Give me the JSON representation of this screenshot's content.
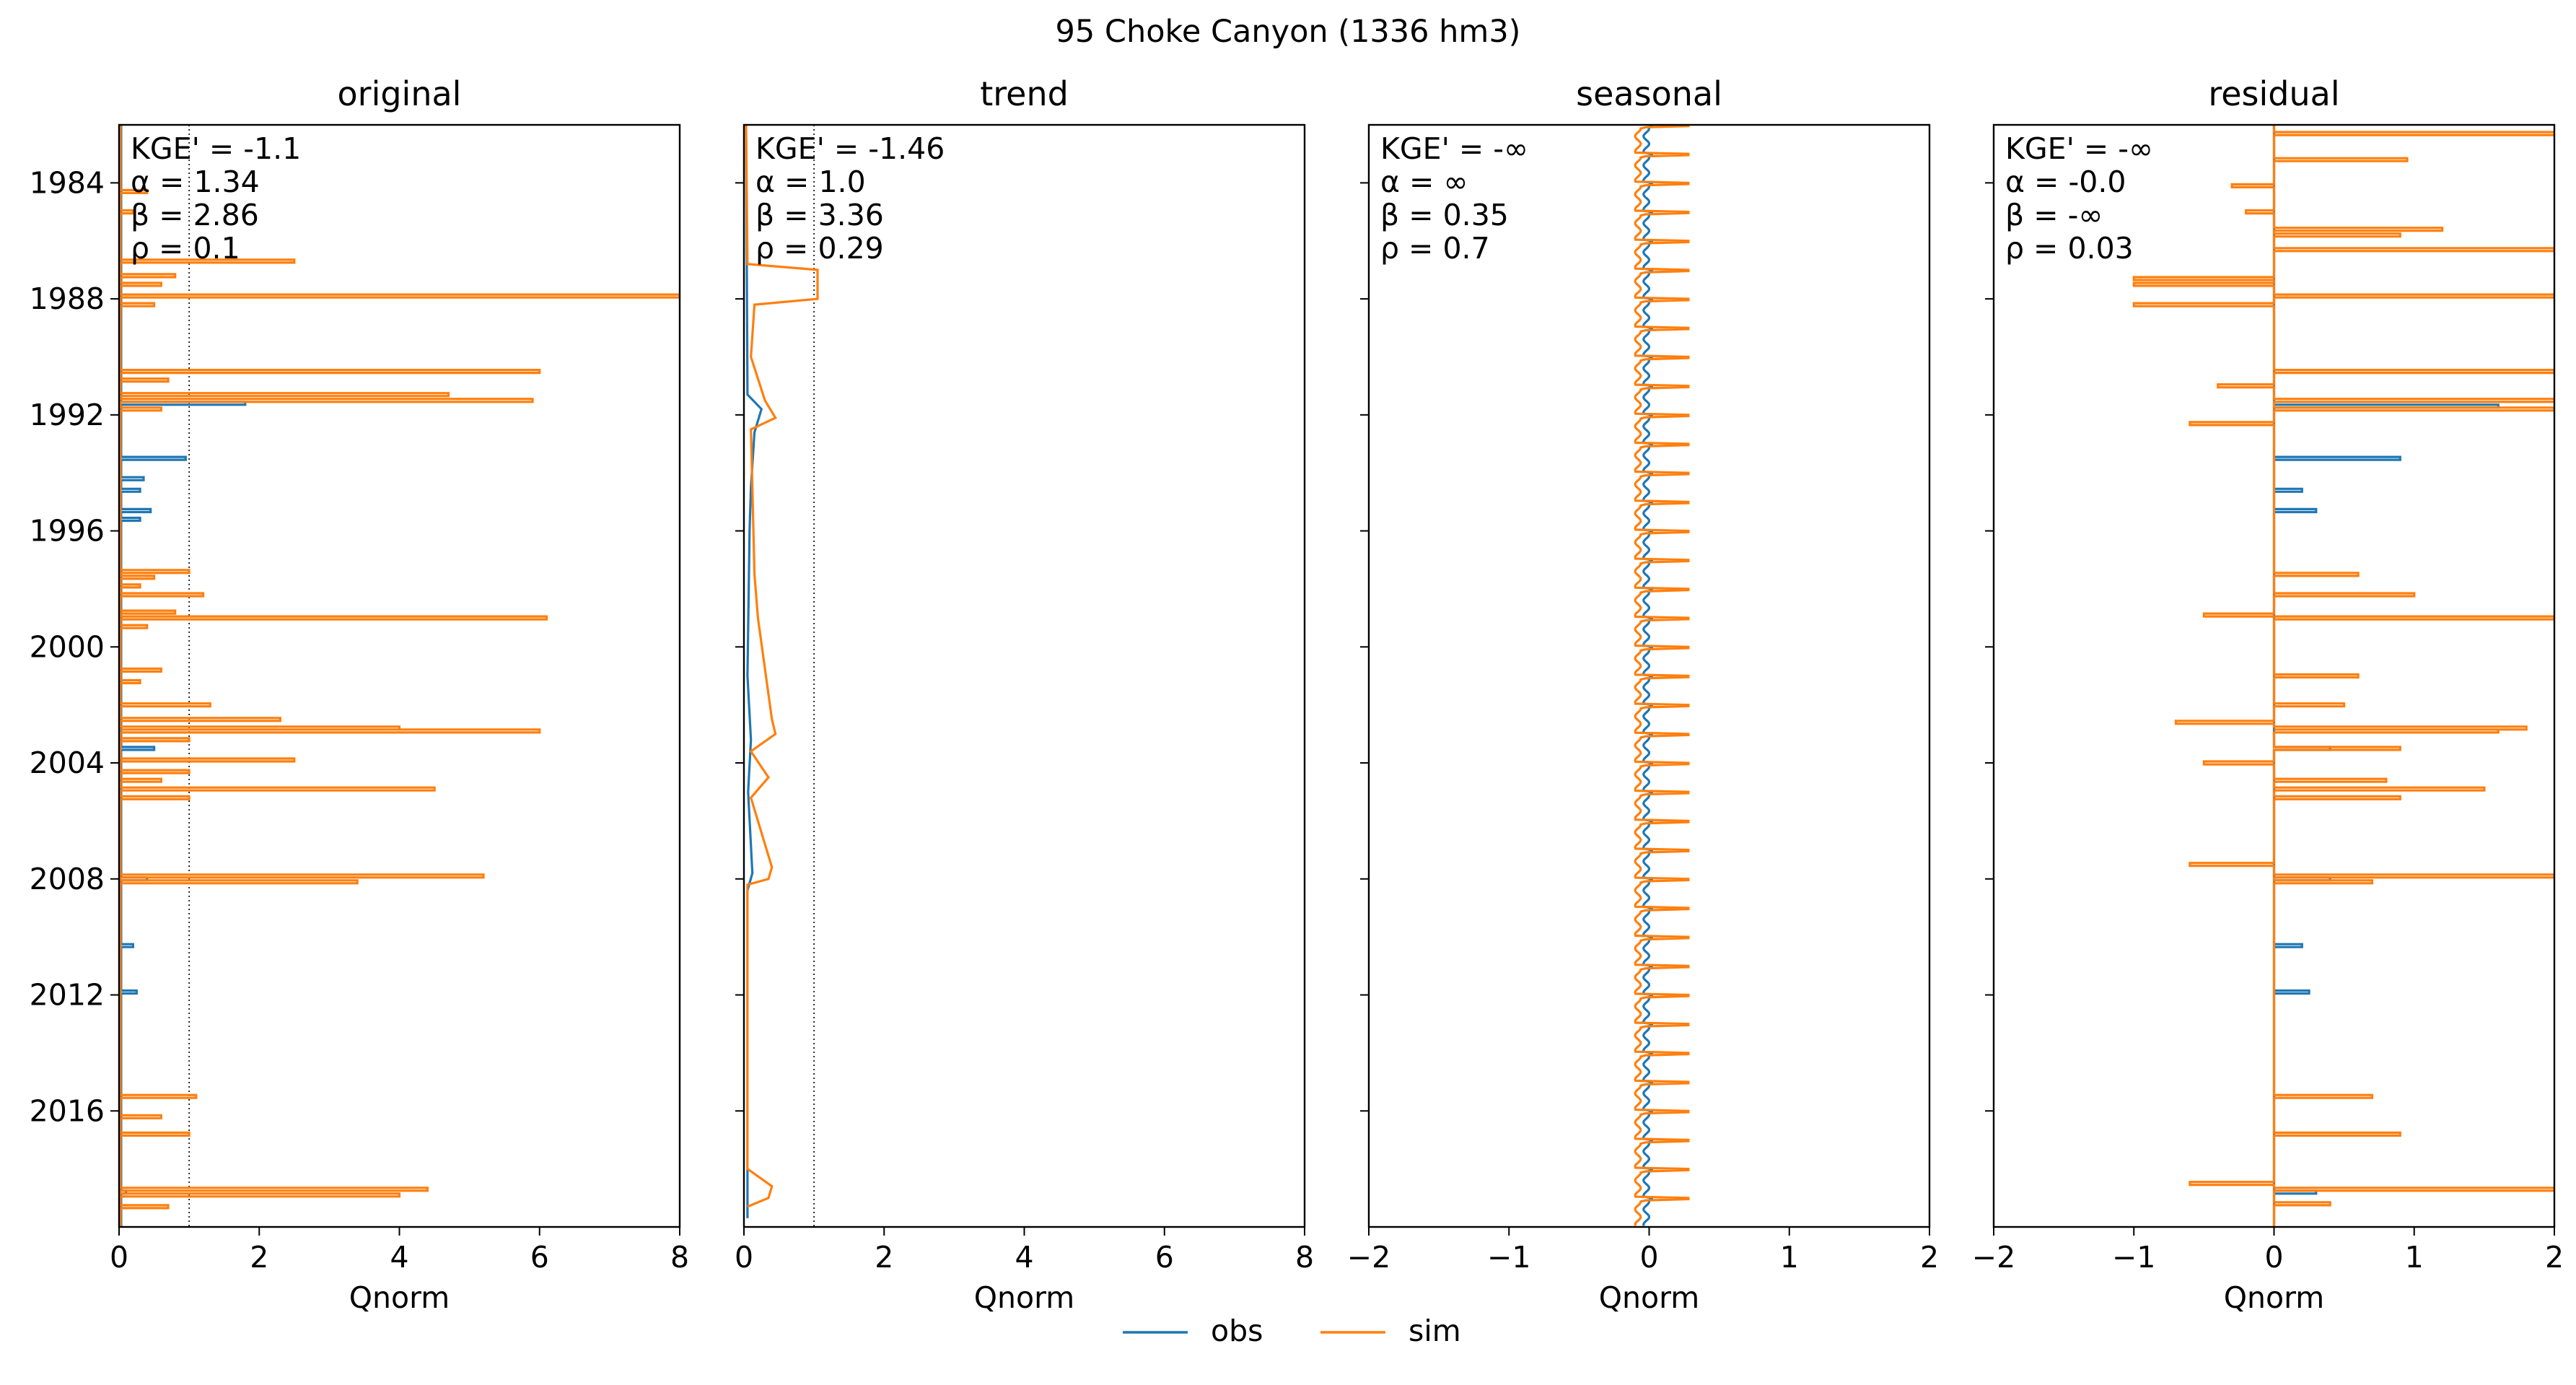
{
  "figure": {
    "suptitle": "95  Choke Canyon (1336 hm3)"
  },
  "legend": {
    "placement": "bottom-center",
    "entries": [
      {
        "name": "obs",
        "color": "#1f77b4"
      },
      {
        "name": "sim",
        "color": "#ff7f0e"
      }
    ]
  },
  "chart_data": [
    {
      "type": "line",
      "title": "original",
      "xlabel": "Qnorm",
      "xlim": [
        0,
        8
      ],
      "xticks": [
        "0",
        "2",
        "4",
        "6",
        "8"
      ],
      "ylim": [
        1982,
        2020
      ],
      "yticks": [
        "1984",
        "1988",
        "1992",
        "1996",
        "2000",
        "2004",
        "2008",
        "2012",
        "2016"
      ],
      "reference_lines": [
        0,
        1
      ],
      "metrics": [
        "KGE' = -1.1",
        "α = 1.34",
        "β = 2.86",
        "ρ = 0.1"
      ],
      "series": [
        {
          "name": "obs",
          "color": "#1f77b4",
          "baseline": 0.03,
          "spikes": [
            [
              1991.6,
              1.8
            ],
            [
              1993.5,
              0.95
            ],
            [
              1994.2,
              0.35
            ],
            [
              1994.6,
              0.3
            ],
            [
              1995.3,
              0.45
            ],
            [
              1995.6,
              0.3
            ],
            [
              2003.5,
              0.5
            ],
            [
              2008.0,
              0.4
            ],
            [
              2010.3,
              0.2
            ],
            [
              2011.9,
              0.25
            ],
            [
              2018.8,
              0.1
            ]
          ]
        },
        {
          "name": "sim",
          "color": "#ff7f0e",
          "baseline": 0.02,
          "spikes": [
            [
              1984.3,
              0.4
            ],
            [
              1985.0,
              0.2
            ],
            [
              1986.7,
              2.5
            ],
            [
              1987.2,
              0.8
            ],
            [
              1987.5,
              0.6
            ],
            [
              1987.9,
              8.0
            ],
            [
              1988.2,
              0.5
            ],
            [
              1990.5,
              6.0
            ],
            [
              1990.8,
              0.7
            ],
            [
              1991.3,
              4.7
            ],
            [
              1991.5,
              5.9
            ],
            [
              1991.8,
              0.6
            ],
            [
              1997.4,
              1.0
            ],
            [
              1997.6,
              0.5
            ],
            [
              1997.9,
              0.3
            ],
            [
              1998.2,
              1.2
            ],
            [
              1998.8,
              0.8
            ],
            [
              1999.0,
              6.1
            ],
            [
              1999.3,
              0.4
            ],
            [
              2000.8,
              0.6
            ],
            [
              2001.2,
              0.3
            ],
            [
              2002.0,
              1.3
            ],
            [
              2002.5,
              2.3
            ],
            [
              2002.8,
              4.0
            ],
            [
              2002.9,
              6.0
            ],
            [
              2003.2,
              1.0
            ],
            [
              2003.9,
              2.5
            ],
            [
              2004.3,
              1.0
            ],
            [
              2004.6,
              0.6
            ],
            [
              2004.9,
              4.5
            ],
            [
              2005.2,
              1.0
            ],
            [
              2007.9,
              5.2
            ],
            [
              2008.1,
              3.4
            ],
            [
              2015.5,
              1.1
            ],
            [
              2016.2,
              0.6
            ],
            [
              2016.8,
              1.0
            ],
            [
              2018.7,
              4.4
            ],
            [
              2018.9,
              4.0
            ],
            [
              2019.3,
              0.7
            ]
          ]
        }
      ]
    },
    {
      "type": "line",
      "title": "trend",
      "xlabel": "Qnorm",
      "xlim": [
        0,
        8
      ],
      "xticks": [
        "0",
        "2",
        "4",
        "6",
        "8"
      ],
      "ylim": [
        1982,
        2020
      ],
      "reference_lines": [
        0,
        1
      ],
      "metrics": [
        "KGE' = -1.46",
        "α = 1.0",
        "β = 3.36",
        "ρ = 0.29"
      ],
      "series": [
        {
          "name": "obs",
          "color": "#1f77b4",
          "points": [
            [
              1982.0,
              0.03
            ],
            [
              1991.3,
              0.05
            ],
            [
              1991.8,
              0.25
            ],
            [
              1992.6,
              0.15
            ],
            [
              1994.5,
              0.1
            ],
            [
              1996.0,
              0.08
            ],
            [
              2001.0,
              0.05
            ],
            [
              2003.2,
              0.1
            ],
            [
              2005.0,
              0.06
            ],
            [
              2007.8,
              0.12
            ],
            [
              2008.4,
              0.05
            ],
            [
              2019.7,
              0.05
            ]
          ]
        },
        {
          "name": "sim",
          "color": "#ff7f0e",
          "points": [
            [
              1982.0,
              0.03
            ],
            [
              1986.8,
              0.05
            ],
            [
              1987.0,
              1.05
            ],
            [
              1988.0,
              1.05
            ],
            [
              1988.2,
              0.15
            ],
            [
              1990.0,
              0.1
            ],
            [
              1991.5,
              0.3
            ],
            [
              1992.1,
              0.45
            ],
            [
              1992.5,
              0.1
            ],
            [
              1997.5,
              0.15
            ],
            [
              1999.0,
              0.2
            ],
            [
              2002.5,
              0.4
            ],
            [
              2003.0,
              0.45
            ],
            [
              2003.6,
              0.1
            ],
            [
              2004.5,
              0.35
            ],
            [
              2005.2,
              0.1
            ],
            [
              2007.6,
              0.4
            ],
            [
              2008.0,
              0.35
            ],
            [
              2008.2,
              0.05
            ],
            [
              2018.0,
              0.05
            ],
            [
              2018.6,
              0.4
            ],
            [
              2019.0,
              0.35
            ],
            [
              2019.3,
              0.05
            ]
          ]
        }
      ]
    },
    {
      "type": "line",
      "title": "seasonal",
      "xlabel": "Qnorm",
      "xlim": [
        -2,
        2
      ],
      "xticks": [
        "−2",
        "−1",
        "0",
        "1",
        "2"
      ],
      "ylim": [
        1982,
        2020
      ],
      "metrics": [
        "KGE' = -∞",
        "α = ∞",
        "β = 0.35",
        "ρ = 0.7"
      ],
      "series": [
        {
          "name": "obs",
          "color": "#1f77b4",
          "amplitude": [
            -0.02,
            0.02
          ],
          "period": 1
        },
        {
          "name": "sim",
          "color": "#ff7f0e",
          "amplitude": [
            -0.08,
            0.28
          ],
          "period": 1
        }
      ]
    },
    {
      "type": "line",
      "title": "residual",
      "xlabel": "Qnorm",
      "xlim": [
        -2,
        2
      ],
      "xticks": [
        "−2",
        "−1",
        "0",
        "1",
        "2"
      ],
      "ylim": [
        1982,
        2020
      ],
      "metrics": [
        "KGE' = -∞",
        "α = -0.0",
        "β = -∞",
        "ρ = 0.03"
      ],
      "series": [
        {
          "name": "obs",
          "color": "#1f77b4",
          "baseline": 0.0,
          "spikes": [
            [
              1991.7,
              1.6
            ],
            [
              1993.5,
              0.9
            ],
            [
              1994.6,
              0.2
            ],
            [
              1995.3,
              0.3
            ],
            [
              2003.5,
              0.4
            ],
            [
              2008.0,
              0.4
            ],
            [
              2010.3,
              0.2
            ],
            [
              2011.9,
              0.25
            ],
            [
              2018.8,
              0.3
            ]
          ]
        },
        {
          "name": "sim",
          "color": "#ff7f0e",
          "baseline": 0.0,
          "spikes": [
            [
              1982.3,
              2.0
            ],
            [
              1983.2,
              0.95
            ],
            [
              1984.1,
              -0.3
            ],
            [
              1985.0,
              -0.2
            ],
            [
              1985.6,
              1.2
            ],
            [
              1985.8,
              0.9
            ],
            [
              1986.3,
              2.0
            ],
            [
              1987.3,
              -1.0
            ],
            [
              1987.5,
              -1.0
            ],
            [
              1987.9,
              2.0
            ],
            [
              1988.2,
              -1.0
            ],
            [
              1990.5,
              2.0
            ],
            [
              1991.0,
              -0.4
            ],
            [
              1991.5,
              2.0
            ],
            [
              1991.8,
              2.0
            ],
            [
              1992.3,
              -0.6
            ],
            [
              1997.5,
              0.6
            ],
            [
              1998.2,
              1.0
            ],
            [
              1998.9,
              -0.5
            ],
            [
              1999.0,
              2.0
            ],
            [
              2001.0,
              0.6
            ],
            [
              2002.0,
              0.5
            ],
            [
              2002.6,
              -0.7
            ],
            [
              2002.8,
              1.8
            ],
            [
              2002.9,
              1.6
            ],
            [
              2003.5,
              0.9
            ],
            [
              2004.0,
              -0.5
            ],
            [
              2004.6,
              0.8
            ],
            [
              2004.9,
              1.5
            ],
            [
              2005.2,
              0.9
            ],
            [
              2007.5,
              -0.6
            ],
            [
              2007.9,
              2.0
            ],
            [
              2008.1,
              0.7
            ],
            [
              2015.5,
              0.7
            ],
            [
              2016.8,
              0.9
            ],
            [
              2018.5,
              -0.6
            ],
            [
              2018.7,
              2.0
            ],
            [
              2019.2,
              0.4
            ]
          ]
        }
      ]
    }
  ]
}
